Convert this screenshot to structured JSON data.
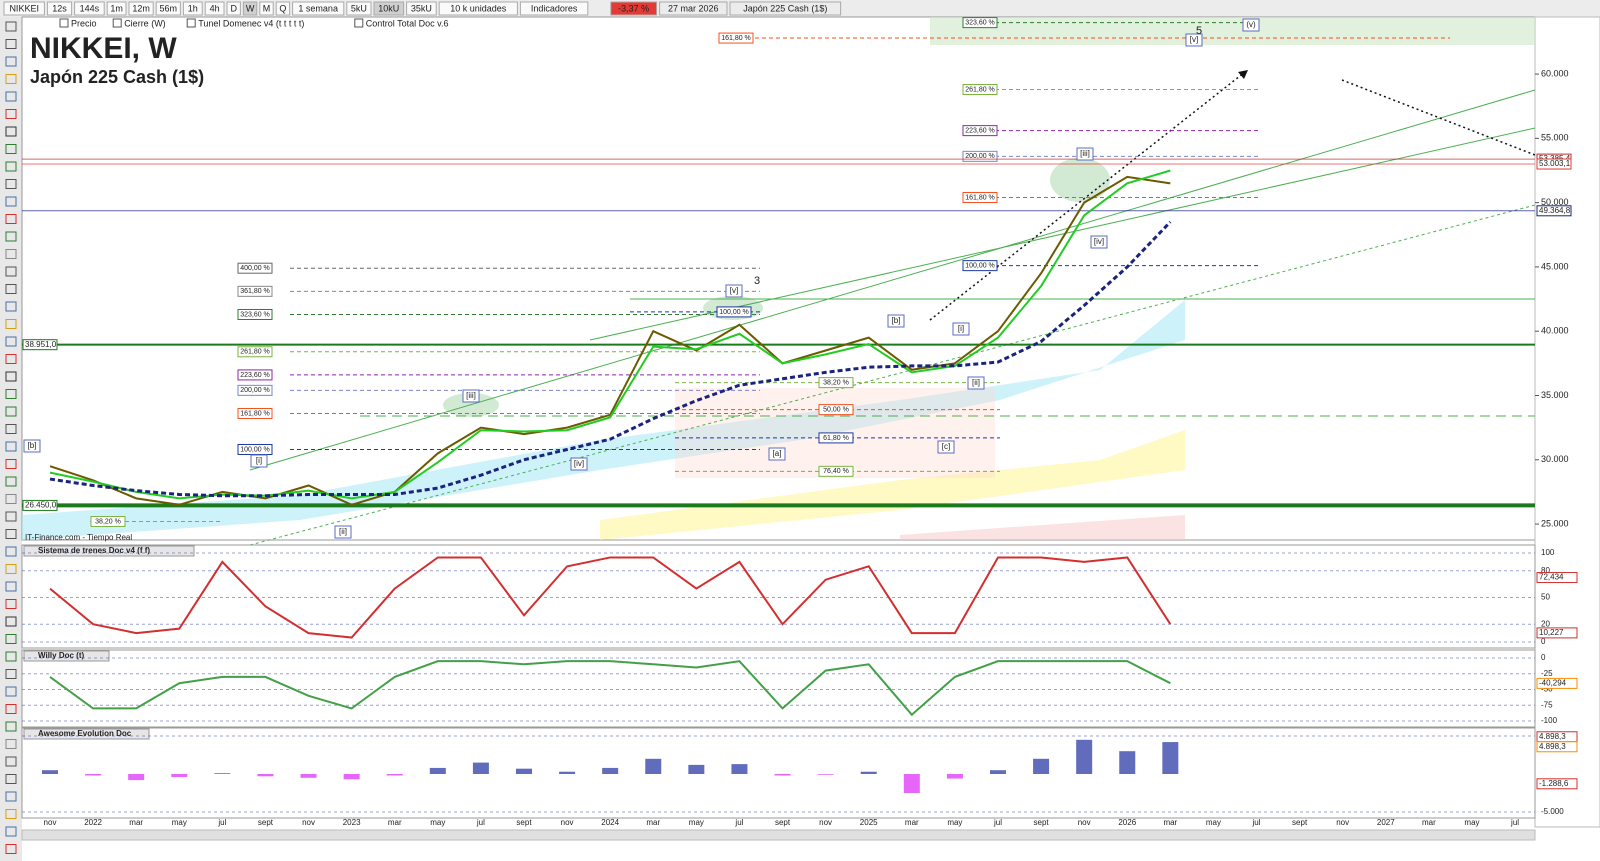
{
  "toolbar": {
    "symbol": "NIKKEI",
    "timeframes": [
      "12s",
      "144s",
      "1m",
      "12m",
      "56m",
      "1h",
      "4h",
      "D",
      "W",
      "M",
      "Q"
    ],
    "period": "1 semana",
    "units": [
      "5kU",
      "10kU",
      "35kU"
    ],
    "units_select": "10 k unidades",
    "indicators": "Indicadores",
    "change": "-3,37 %",
    "date": "27 mar 2026",
    "instrument": "Japón 225 Cash (1$)"
  },
  "legend_bar": [
    "Precio",
    "Cierre (W)",
    "Tunel Domenec v4 (t t t t t)",
    "Control Total Doc v.6"
  ],
  "chart_data": {
    "type": "line",
    "title": "NIKKEI, W",
    "subtitle": "Japón 225 Cash (1$)",
    "categories": [
      "nov",
      "2022",
      "mar",
      "may",
      "jul",
      "sept",
      "nov",
      "2023",
      "mar",
      "may",
      "jul",
      "sept",
      "nov",
      "2024",
      "mar",
      "may",
      "jul",
      "sept",
      "nov",
      "2025",
      "mar",
      "may",
      "jul",
      "sept",
      "nov",
      "2026",
      "mar",
      "may",
      "jul",
      "sept",
      "nov",
      "2027",
      "mar",
      "may",
      "jul"
    ],
    "series": [
      {
        "color": "#6b5a00",
        "values": [
          29500,
          28400,
          27000,
          26500,
          27500,
          27000,
          28000,
          26500,
          27500,
          30500,
          32500,
          32000,
          32500,
          33500,
          40000,
          38500,
          40500,
          37500,
          38500,
          39500,
          37000,
          37500,
          40000,
          44500,
          50000,
          52000,
          51500,
          null,
          null,
          null,
          null,
          null,
          null,
          null,
          null
        ]
      },
      {
        "color": "#22cc22",
        "values": [
          29000,
          28300,
          27500,
          27000,
          27300,
          27200,
          27600,
          27000,
          27500,
          29800,
          32300,
          32200,
          32300,
          33300,
          38800,
          38600,
          39800,
          37500,
          38200,
          39000,
          36800,
          37300,
          39500,
          43500,
          49000,
          51500,
          52500,
          null,
          null,
          null,
          null,
          null,
          null,
          null,
          null
        ]
      },
      {
        "color": "#1a237e",
        "values": [
          28500,
          28000,
          27600,
          27300,
          27200,
          27200,
          27300,
          27300,
          27300,
          27800,
          28800,
          30000,
          30800,
          31600,
          33200,
          34600,
          35800,
          36300,
          36800,
          37200,
          37300,
          37300,
          37600,
          39200,
          42000,
          45000,
          48500,
          null,
          null,
          null,
          null,
          null,
          null,
          null,
          null
        ]
      }
    ],
    "ylim": [
      23760,
      64360
    ],
    "yticks": [
      {
        "value": 25000,
        "label": "25.000"
      },
      {
        "value": 30000,
        "label": "30.000"
      },
      {
        "value": 35000,
        "label": "35.000"
      },
      {
        "value": 40000,
        "label": "40.000"
      },
      {
        "value": 45000,
        "label": "45.000"
      },
      {
        "value": 50000,
        "label": "50.000"
      },
      {
        "value": 55000,
        "label": "55.000"
      },
      {
        "value": 60000,
        "label": "60.000"
      }
    ],
    "levels": [
      {
        "value": 53385.4,
        "label": "53.385,4",
        "color": "#c62828"
      },
      {
        "value": 53003.1,
        "label": "53.003,1",
        "color": "#e53935"
      },
      {
        "value": 49364.8,
        "label": "49.364,8",
        "color": "#1a237e"
      },
      {
        "value": 38951.0,
        "label": "38.951,0",
        "color": "#1b7a1b"
      },
      {
        "value": 26450.0,
        "label": "26.450,0",
        "color": "#1b7a1b"
      }
    ],
    "fibonacci": [
      {
        "levels": [
          {
            "label": "400,00 %",
            "value": 44900,
            "color": "#666666"
          },
          {
            "label": "361,80 %",
            "value": 43100,
            "color": "#888888"
          },
          {
            "label": "323,60 %",
            "value": 41300,
            "color": "#2e7d32"
          },
          {
            "label": "261,80 %",
            "value": 38400,
            "color": "#7cb342"
          },
          {
            "label": "223,60 %",
            "value": 36600,
            "color": "#8e24aa"
          },
          {
            "label": "200,00 %",
            "value": 35400,
            "color": "#7986cb"
          },
          {
            "label": "161,80 %",
            "value": 33600,
            "color": "#f4511e"
          },
          {
            "label": "100,00 %",
            "value": 30800,
            "color": "#1e3a9e"
          }
        ]
      },
      {
        "levels": [
          {
            "label": "38,20 %",
            "value": 25200,
            "color": "#7cb342"
          }
        ]
      },
      {
        "levels": [
          {
            "label": "38,20 %",
            "value": 36000,
            "color": "#7cb342"
          },
          {
            "label": "50,00 %",
            "value": 33900,
            "color": "#f4511e"
          },
          {
            "label": "61,80 %",
            "value": 31700,
            "color": "#1e3a9e"
          },
          {
            "label": "76,40 %",
            "value": 29100,
            "color": "#7cb342"
          }
        ]
      },
      {
        "levels": [
          {
            "label": "323,60 %",
            "value": 64000,
            "color": "#2e7d32"
          },
          {
            "label": "261,80 %",
            "value": 58800,
            "color": "#7cb342"
          },
          {
            "label": "223,60 %",
            "value": 55600,
            "color": "#8e24aa"
          },
          {
            "label": "200,00 %",
            "value": 53600,
            "color": "#7986cb"
          },
          {
            "label": "161,80 %",
            "value": 50400,
            "color": "#f4511e"
          },
          {
            "label": "100,00 %",
            "value": 45100,
            "color": "#1e3a9e"
          }
        ]
      },
      {
        "levels": [
          {
            "label": "100,00 %",
            "value": 41500,
            "color": "#1e3a9e"
          }
        ]
      },
      {
        "levels": [
          {
            "label": "161,80 %",
            "value": 62800,
            "color": "#f4511e"
          }
        ]
      }
    ],
    "wave_labels": [
      "[b]",
      "[i]",
      "[ii]",
      "[iii]",
      "[iv]",
      "[v]",
      "3",
      "[a]",
      "[b]",
      "[i]",
      "[ii]",
      "[c]",
      "[iii]",
      "[iv]",
      "[v]",
      "5",
      "(v)"
    ],
    "source": "IT-Finance.com - Tiempo Real"
  },
  "indicators": [
    {
      "type": "line",
      "title": "Sistema de trenes Doc v4 (f f)",
      "color": "#d32f2f",
      "ylim": [
        0,
        100
      ],
      "yticks": [
        0,
        20,
        50,
        80,
        100
      ],
      "values": [
        60,
        20,
        10,
        15,
        90,
        40,
        10,
        5,
        60,
        95,
        95,
        30,
        85,
        95,
        95,
        60,
        90,
        20,
        70,
        85,
        10,
        10,
        95,
        95,
        90,
        95,
        20,
        null,
        null,
        null,
        null,
        null,
        null,
        null,
        null
      ],
      "markers": [
        {
          "value": 72.434,
          "label": "72,434",
          "color": "#d32f2f"
        },
        {
          "value": 10.227,
          "label": "10,227",
          "color": "#d32f2f"
        }
      ]
    },
    {
      "type": "line",
      "title": "Willy Doc (t)",
      "color": "#43a047",
      "ylim": [
        -100,
        0
      ],
      "yticks": [
        -100,
        -75,
        -50,
        -25,
        0
      ],
      "values": [
        -30,
        -80,
        -80,
        -40,
        -30,
        -30,
        -60,
        -80,
        -30,
        -5,
        -5,
        -10,
        -5,
        -5,
        -10,
        -15,
        -5,
        -80,
        -20,
        -10,
        -90,
        -30,
        -5,
        -5,
        -5,
        -5,
        -40,
        null,
        null,
        null,
        null,
        null,
        null,
        null,
        null
      ],
      "markers": [
        {
          "value": -40.294,
          "label": "-40,294",
          "color": "#fb8c00"
        }
      ]
    },
    {
      "type": "bar",
      "title": "Awesome Evolution Doc",
      "color": "#3949ab",
      "ylim": [
        -5000,
        5000
      ],
      "yticks": [
        {
          "value": -5000,
          "label": "-5.000"
        },
        {
          "value": 5000,
          "label": "5.000"
        }
      ],
      "values": [
        500,
        -200,
        -800,
        -400,
        100,
        -300,
        -500,
        -700,
        -200,
        800,
        1500,
        700,
        300,
        800,
        2000,
        1200,
        1300,
        -200,
        -100,
        300,
        -2500,
        -600,
        500,
        2000,
        4500,
        3000,
        4200,
        null,
        null,
        null,
        null,
        null,
        null,
        null,
        null
      ],
      "markers": [
        {
          "value": 4898.3,
          "label": "4.898,3",
          "color": "#d32f2f"
        },
        {
          "value": 4898.3,
          "label": "4.898,3",
          "color": "#fb8c00"
        },
        {
          "value": -1288.6,
          "label": "-1.288,6",
          "color": "#d32f2f"
        }
      ]
    }
  ]
}
